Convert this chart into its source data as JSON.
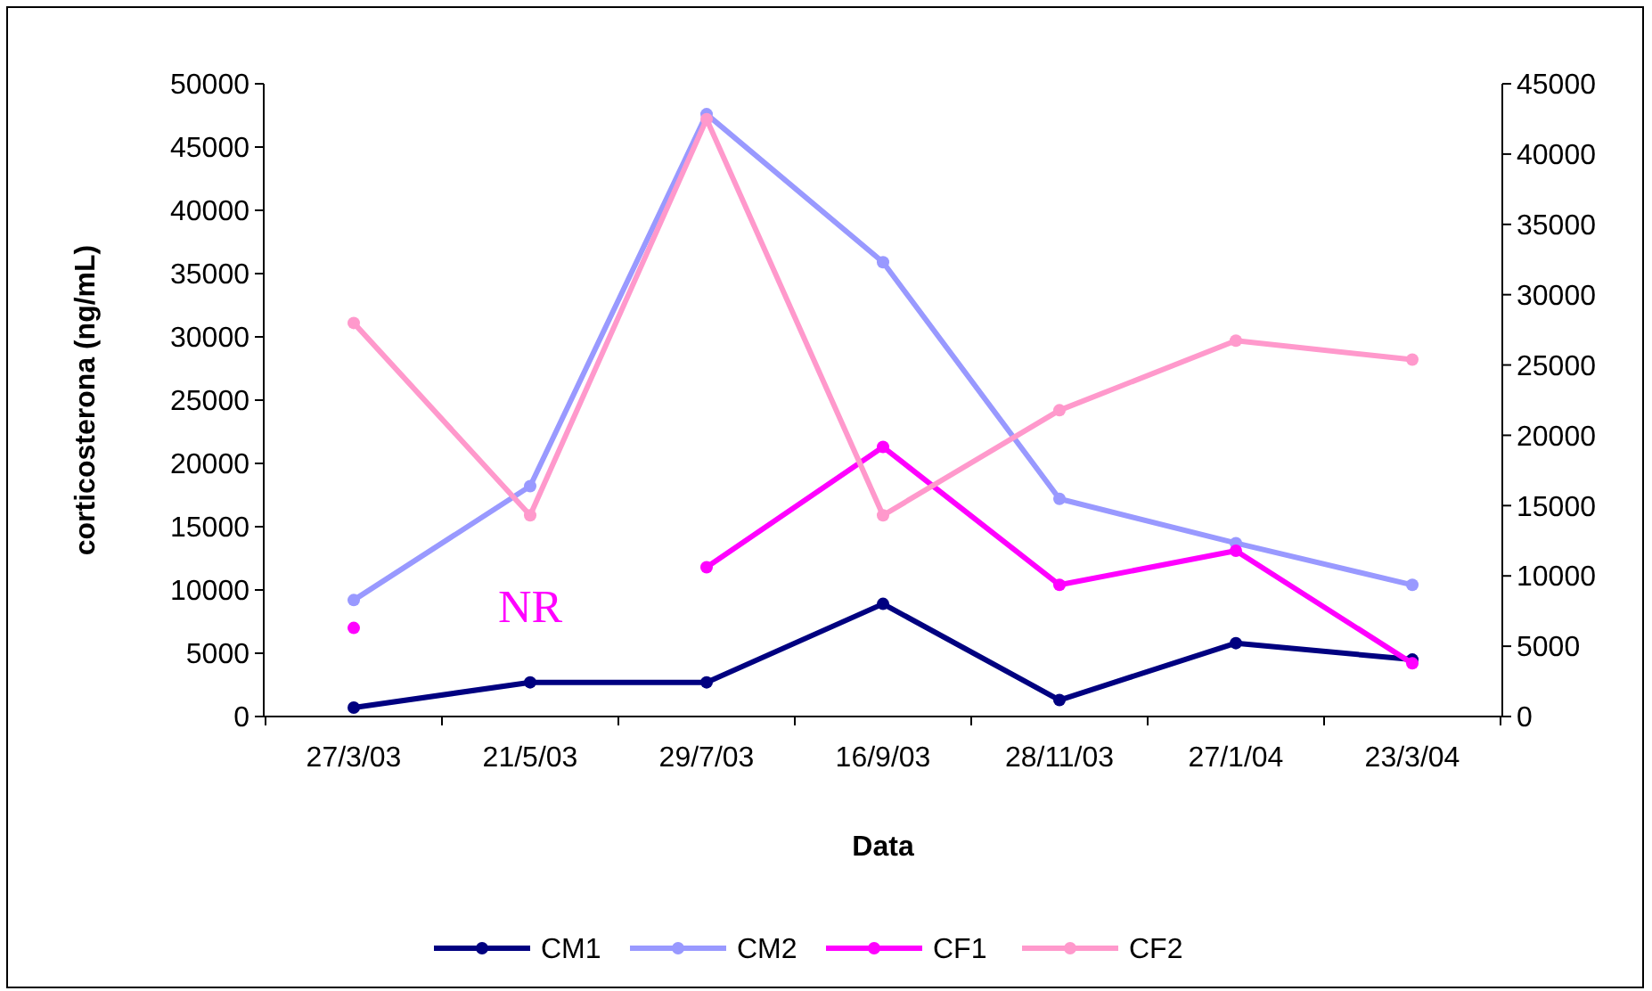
{
  "chart_data": {
    "type": "line",
    "xlabel": "Data",
    "ylabel": "corticosterona (ng/mL)",
    "categories": [
      "27/3/03",
      "21/5/03",
      "29/7/03",
      "16/9/03",
      "28/11/03",
      "27/1/04",
      "23/3/04"
    ],
    "series": [
      {
        "name": "CM1",
        "color": "#000080",
        "values": [
          700,
          2700,
          2700,
          8900,
          1300,
          5800,
          4500
        ]
      },
      {
        "name": "CM2",
        "color": "#9999ff",
        "values": [
          9200,
          18200,
          47600,
          35900,
          17200,
          13700,
          10400
        ]
      },
      {
        "name": "CF1",
        "color": "#ff00ff",
        "values": [
          7000,
          null,
          11800,
          21300,
          10400,
          13100,
          4200
        ]
      },
      {
        "name": "CF2",
        "color": "#ff99cc",
        "values": [
          31100,
          15900,
          47200,
          15900,
          24200,
          29700,
          28200
        ]
      }
    ],
    "ylim": [
      0,
      50000
    ],
    "yticks": [
      0,
      5000,
      10000,
      15000,
      20000,
      25000,
      30000,
      35000,
      40000,
      45000,
      50000
    ],
    "y2lim": [
      0,
      45000
    ],
    "y2ticks": [
      0,
      5000,
      10000,
      15000,
      20000,
      25000,
      30000,
      35000,
      40000,
      45000
    ],
    "annotations": [
      "NR"
    ],
    "marker": "circle",
    "line_style": "solid",
    "grid": false,
    "legend": "bottom"
  }
}
